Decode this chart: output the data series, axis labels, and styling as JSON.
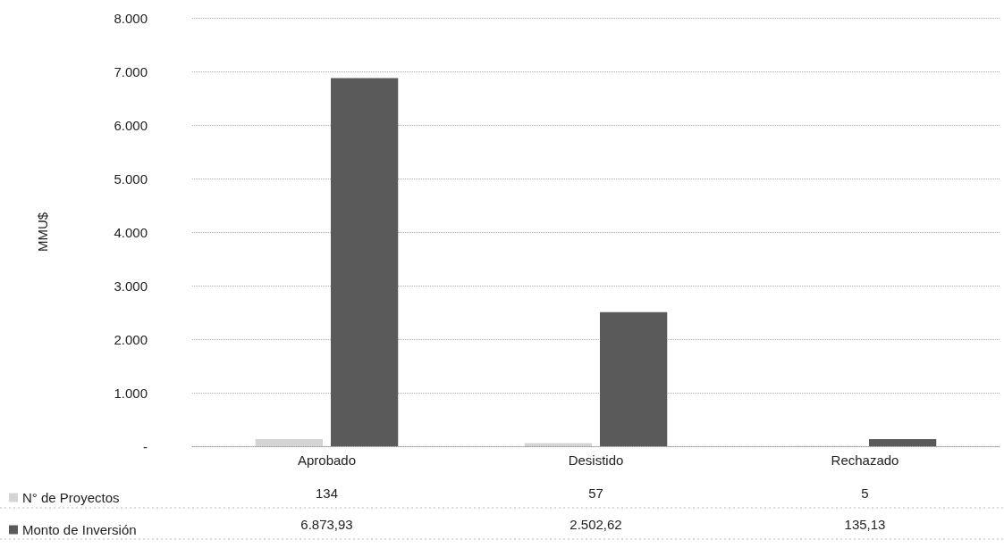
{
  "chart_data": {
    "type": "bar",
    "ylabel": "MMU$",
    "categories": [
      "Aprobado",
      "Desistido",
      "Rechazado"
    ],
    "series": [
      {
        "name": "N° de Proyectos",
        "color": "#d4d4d4",
        "values": [
          134,
          57,
          5
        ],
        "value_labels": [
          "134",
          "57",
          "5"
        ]
      },
      {
        "name": "Monto de Inversión",
        "color": "#5a5a5a",
        "values": [
          6873.93,
          2502.62,
          135.13
        ],
        "value_labels": [
          "6.873,93",
          "2.502,62",
          "135,13"
        ]
      }
    ],
    "ylim": [
      0,
      8000
    ],
    "yticks": [
      {
        "value": 0,
        "label": "-"
      },
      {
        "value": 1000,
        "label": "1.000"
      },
      {
        "value": 2000,
        "label": "2.000"
      },
      {
        "value": 3000,
        "label": "3.000"
      },
      {
        "value": 4000,
        "label": "4.000"
      },
      {
        "value": 5000,
        "label": "5.000"
      },
      {
        "value": 6000,
        "label": "6.000"
      },
      {
        "value": 7000,
        "label": "7.000"
      },
      {
        "value": 8000,
        "label": "8.000"
      }
    ],
    "grid": "y",
    "legend": "bottom left"
  }
}
